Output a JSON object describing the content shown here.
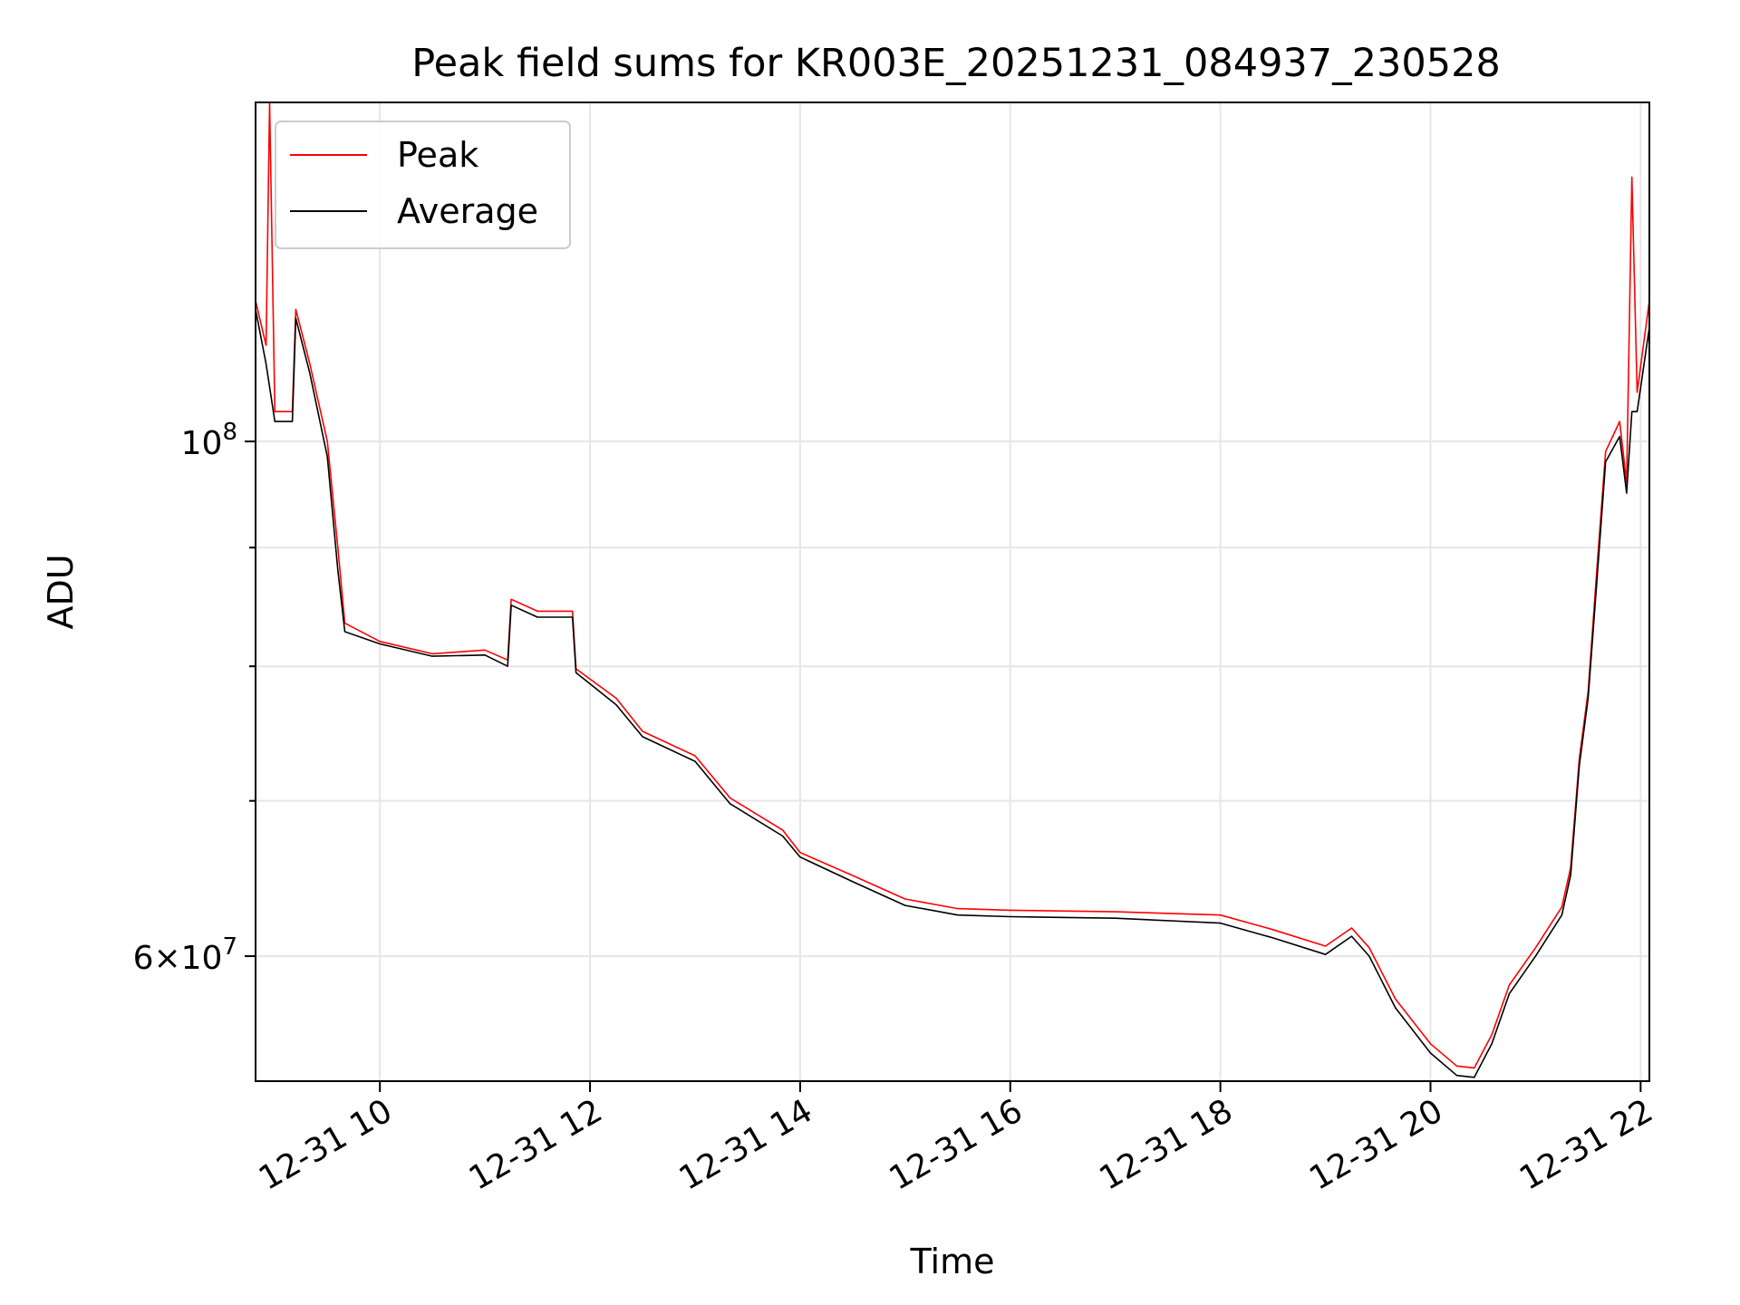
{
  "chart_data": {
    "type": "line",
    "title": "Peak field sums for KR003E_20251231_084937_230528",
    "xlabel": "Time",
    "ylabel": "ADU",
    "y_scale": "log",
    "grid": true,
    "legend_position": "upper-left",
    "x_range": [
      "2025-12-31 08:49",
      "2025-12-31 22:05"
    ],
    "y_range": [
      53000000,
      140000000
    ],
    "x_ticks": [
      {
        "x": "2025-12-31 10:00",
        "label": "12-31 10"
      },
      {
        "x": "2025-12-31 12:00",
        "label": "12-31 12"
      },
      {
        "x": "2025-12-31 14:00",
        "label": "12-31 14"
      },
      {
        "x": "2025-12-31 16:00",
        "label": "12-31 16"
      },
      {
        "x": "2025-12-31 18:00",
        "label": "12-31 18"
      },
      {
        "x": "2025-12-31 20:00",
        "label": "12-31 20"
      },
      {
        "x": "2025-12-31 22:00",
        "label": "12-31 22"
      }
    ],
    "y_ticks_major": [
      {
        "value": 100000000,
        "base": "10",
        "exp": "8",
        "mantissa": ""
      },
      {
        "value": 60000000,
        "base": "10",
        "exp": "7",
        "mantissa": "6"
      }
    ],
    "y_ticks_minor": [
      70000000,
      80000000,
      90000000
    ],
    "series": [
      {
        "name": "Peak",
        "color": "#ff0000",
        "points": [
          [
            "2025-12-31 08:49",
            115000000
          ],
          [
            "2025-12-31 08:55",
            110000000
          ],
          [
            "2025-12-31 08:57",
            180000000
          ],
          [
            "2025-12-31 09:00",
            103000000
          ],
          [
            "2025-12-31 09:10",
            103000000
          ],
          [
            "2025-12-31 09:12",
            114000000
          ],
          [
            "2025-12-31 09:20",
            108000000
          ],
          [
            "2025-12-31 09:30",
            100000000
          ],
          [
            "2025-12-31 09:36",
            90000000
          ],
          [
            "2025-12-31 09:40",
            83500000
          ],
          [
            "2025-12-31 10:00",
            82000000
          ],
          [
            "2025-12-31 10:30",
            81000000
          ],
          [
            "2025-12-31 11:00",
            81300000
          ],
          [
            "2025-12-31 11:13",
            80500000
          ],
          [
            "2025-12-31 11:15",
            85500000
          ],
          [
            "2025-12-31 11:30",
            84500000
          ],
          [
            "2025-12-31 11:50",
            84500000
          ],
          [
            "2025-12-31 11:52",
            79800000
          ],
          [
            "2025-12-31 12:15",
            77500000
          ],
          [
            "2025-12-31 12:30",
            75000000
          ],
          [
            "2025-12-31 13:00",
            73200000
          ],
          [
            "2025-12-31 13:20",
            70200000
          ],
          [
            "2025-12-31 13:50",
            68000000
          ],
          [
            "2025-12-31 14:00",
            66500000
          ],
          [
            "2025-12-31 14:30",
            65000000
          ],
          [
            "2025-12-31 15:00",
            63500000
          ],
          [
            "2025-12-31 15:30",
            62900000
          ],
          [
            "2025-12-31 16:00",
            62800000
          ],
          [
            "2025-12-31 17:00",
            62700000
          ],
          [
            "2025-12-31 18:00",
            62500000
          ],
          [
            "2025-12-31 18:30",
            61600000
          ],
          [
            "2025-12-31 19:00",
            60600000
          ],
          [
            "2025-12-31 19:15",
            61700000
          ],
          [
            "2025-12-31 19:25",
            60500000
          ],
          [
            "2025-12-31 19:40",
            57500000
          ],
          [
            "2025-12-31 20:00",
            55000000
          ],
          [
            "2025-12-31 20:15",
            53800000
          ],
          [
            "2025-12-31 20:25",
            53700000
          ],
          [
            "2025-12-31 20:35",
            55500000
          ],
          [
            "2025-12-31 20:45",
            58300000
          ],
          [
            "2025-12-31 21:00",
            60500000
          ],
          [
            "2025-12-31 21:15",
            63000000
          ],
          [
            "2025-12-31 21:20",
            65500000
          ],
          [
            "2025-12-31 21:25",
            73000000
          ],
          [
            "2025-12-31 21:30",
            78000000
          ],
          [
            "2025-12-31 21:35",
            88000000
          ],
          [
            "2025-12-31 21:40",
            99000000
          ],
          [
            "2025-12-31 21:48",
            102000000
          ],
          [
            "2025-12-31 21:52",
            96000000
          ],
          [
            "2025-12-31 21:55",
            130000000
          ],
          [
            "2025-12-31 21:58",
            105000000
          ],
          [
            "2025-12-31 22:05",
            115000000
          ]
        ]
      },
      {
        "name": "Average",
        "color": "#000000",
        "points": [
          [
            "2025-12-31 08:49",
            114000000
          ],
          [
            "2025-12-31 08:55",
            108000000
          ],
          [
            "2025-12-31 09:00",
            102000000
          ],
          [
            "2025-12-31 09:10",
            102000000
          ],
          [
            "2025-12-31 09:12",
            113000000
          ],
          [
            "2025-12-31 09:20",
            107000000
          ],
          [
            "2025-12-31 09:30",
            98500000
          ],
          [
            "2025-12-31 09:36",
            88000000
          ],
          [
            "2025-12-31 09:40",
            82800000
          ],
          [
            "2025-12-31 10:00",
            81800000
          ],
          [
            "2025-12-31 10:30",
            80800000
          ],
          [
            "2025-12-31 11:00",
            80900000
          ],
          [
            "2025-12-31 11:13",
            80000000
          ],
          [
            "2025-12-31 11:15",
            85000000
          ],
          [
            "2025-12-31 11:30",
            84000000
          ],
          [
            "2025-12-31 11:50",
            84000000
          ],
          [
            "2025-12-31 11:52",
            79500000
          ],
          [
            "2025-12-31 12:15",
            77000000
          ],
          [
            "2025-12-31 12:30",
            74600000
          ],
          [
            "2025-12-31 13:00",
            72800000
          ],
          [
            "2025-12-31 13:20",
            69800000
          ],
          [
            "2025-12-31 13:50",
            67600000
          ],
          [
            "2025-12-31 14:00",
            66200000
          ],
          [
            "2025-12-31 14:30",
            64600000
          ],
          [
            "2025-12-31 15:00",
            63100000
          ],
          [
            "2025-12-31 15:30",
            62500000
          ],
          [
            "2025-12-31 16:00",
            62400000
          ],
          [
            "2025-12-31 17:00",
            62300000
          ],
          [
            "2025-12-31 18:00",
            62000000
          ],
          [
            "2025-12-31 18:30",
            61100000
          ],
          [
            "2025-12-31 19:00",
            60100000
          ],
          [
            "2025-12-31 19:15",
            61200000
          ],
          [
            "2025-12-31 19:25",
            60000000
          ],
          [
            "2025-12-31 19:40",
            57000000
          ],
          [
            "2025-12-31 20:00",
            54500000
          ],
          [
            "2025-12-31 20:15",
            53300000
          ],
          [
            "2025-12-31 20:25",
            53200000
          ],
          [
            "2025-12-31 20:35",
            55000000
          ],
          [
            "2025-12-31 20:45",
            57800000
          ],
          [
            "2025-12-31 21:00",
            60000000
          ],
          [
            "2025-12-31 21:15",
            62500000
          ],
          [
            "2025-12-31 21:20",
            65000000
          ],
          [
            "2025-12-31 21:25",
            72500000
          ],
          [
            "2025-12-31 21:30",
            77500000
          ],
          [
            "2025-12-31 21:35",
            87000000
          ],
          [
            "2025-12-31 21:40",
            98000000
          ],
          [
            "2025-12-31 21:48",
            100500000
          ],
          [
            "2025-12-31 21:52",
            95000000
          ],
          [
            "2025-12-31 21:55",
            103000000
          ],
          [
            "2025-12-31 21:58",
            103000000
          ],
          [
            "2025-12-31 22:05",
            112000000
          ]
        ]
      }
    ]
  }
}
